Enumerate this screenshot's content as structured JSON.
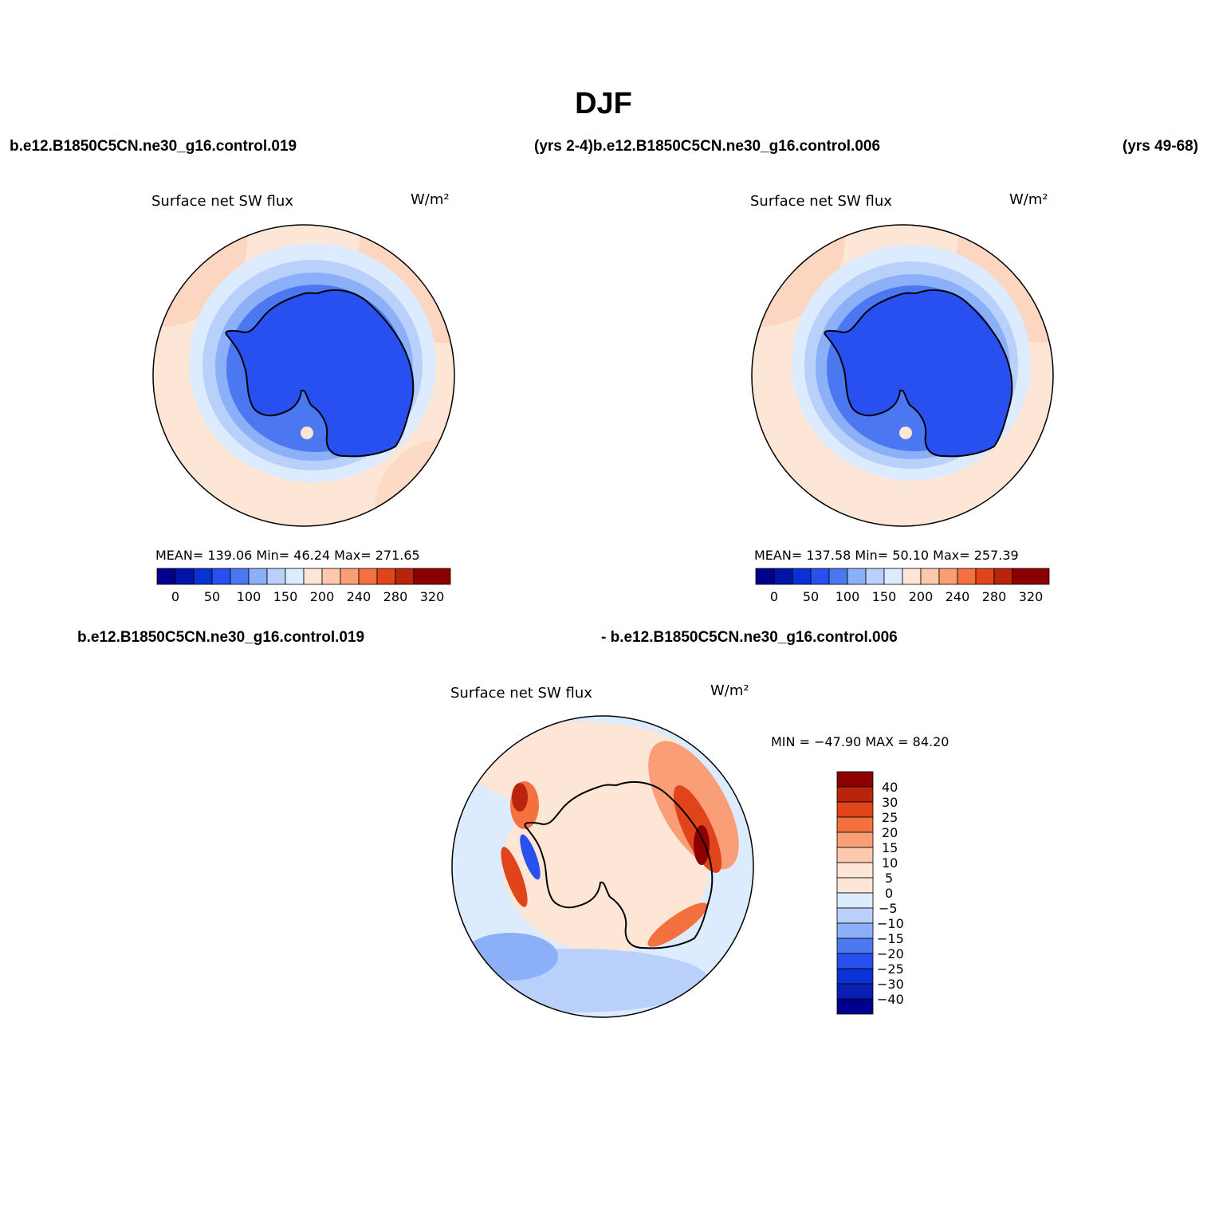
{
  "main_title": "DJF",
  "header_left": "b.e12.B1850C5CN.ne30_g16.control.019",
  "header_mid": "(yrs 2-4)b.e12.B1850C5CN.ne30_g16.control.006",
  "header_right": "(yrs 49-68)",
  "diff_header_left": "b.e12.B1850C5CN.ne30_g16.control.019",
  "diff_header_right": "- b.e12.B1850C5CN.ne30_g16.control.006",
  "colors": {
    "full_scale": [
      "#00008c",
      "#0014a8",
      "#0a32d2",
      "#2850f0",
      "#4b78f0",
      "#8cb0f8",
      "#b8d0fa",
      "#dcebfd",
      "#fde6d6",
      "#fcc8ae",
      "#fa9e78",
      "#f4703e",
      "#e0441a",
      "#b8240c",
      "#8c0000"
    ],
    "diff_scale": [
      "#00008c",
      "#0a1eb4",
      "#0a32d2",
      "#2850f0",
      "#4b78f0",
      "#8cb0f8",
      "#b8d0fa",
      "#dcebfd",
      "#fde6d6",
      "#fcc8ae",
      "#fa9e78",
      "#f4703e",
      "#e0441a",
      "#b8240c",
      "#8c0000"
    ]
  },
  "panels": [
    {
      "title": "Surface net SW flux",
      "units": "W/m²",
      "stats": "MEAN= 139.06   Min=   46.24   Max= 271.65",
      "colorbar_ticks": [
        "0",
        "50",
        "100",
        "150",
        "200",
        "240",
        "280",
        "320"
      ]
    },
    {
      "title": "Surface net SW flux",
      "units": "W/m²",
      "stats": "MEAN= 137.58   Min=   50.10   Max= 257.39",
      "colorbar_ticks": [
        "0",
        "50",
        "100",
        "150",
        "200",
        "240",
        "280",
        "320"
      ]
    },
    {
      "title": "Surface net SW flux",
      "units": "W/m²",
      "stats": "MIN = −47.90 MAX =   84.20",
      "colorbar_ticks": [
        "40",
        "30",
        "25",
        "20",
        "15",
        "10",
        "5",
        "0",
        "−5",
        "−10",
        "−15",
        "−20",
        "−25",
        "−30",
        "−40"
      ]
    }
  ]
}
